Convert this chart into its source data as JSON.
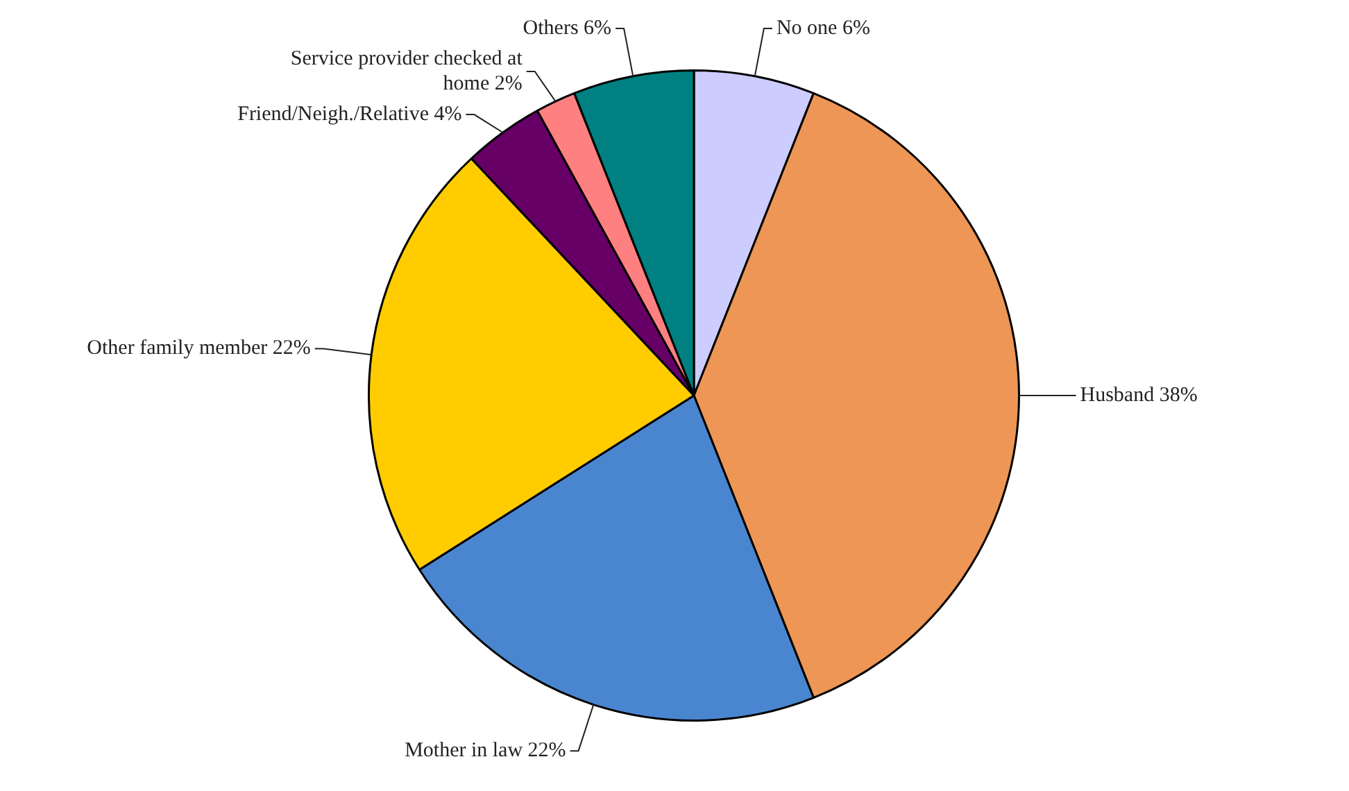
{
  "chart_data": {
    "type": "pie",
    "categories": [
      "No one",
      "Husband",
      "Mother in law",
      "Other family member",
      "Friend/Neigh./Relative",
      "Service provider checked at home",
      "Others"
    ],
    "values": [
      6,
      38,
      22,
      22,
      4,
      2,
      6
    ],
    "value_labels": [
      "6%",
      "38%",
      "22%",
      "22%",
      "4%",
      "2%",
      "6%"
    ],
    "colors": [
      "#ccccff",
      "#ee9655",
      "#4a86d0",
      "#ffcc00",
      "#660066",
      "#ff8080",
      "#008080"
    ],
    "legend": false
  }
}
